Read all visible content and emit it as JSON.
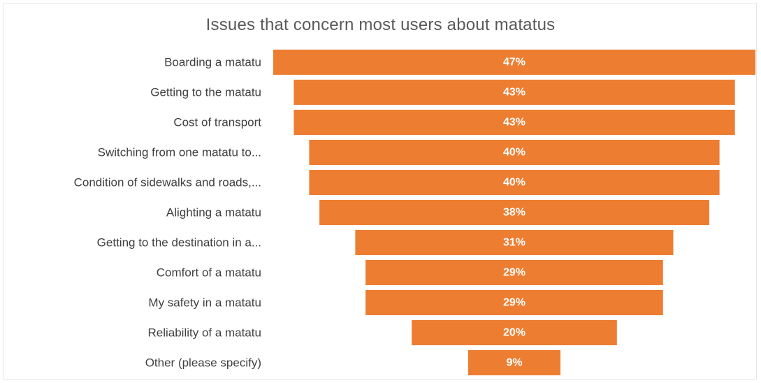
{
  "chart_data": {
    "type": "bar",
    "orientation": "horizontal",
    "layout": "funnel",
    "title": "Issues that concern most users about matatus",
    "categories": [
      "Boarding a matatu",
      "Getting to the matatu",
      "Cost of transport",
      "Switching from one matatu to...",
      "Condition of sidewalks and roads,...",
      "Alighting a matatu",
      "Getting to the destination in a...",
      "Comfort of a matatu",
      "My safety in a matatu",
      "Reliability of a matatu",
      "Other (please specify)"
    ],
    "values": [
      47,
      43,
      43,
      40,
      40,
      38,
      31,
      29,
      29,
      20,
      9
    ],
    "value_labels": [
      "47%",
      "43%",
      "43%",
      "40%",
      "40%",
      "38%",
      "31%",
      "29%",
      "29%",
      "20%",
      "9%"
    ],
    "unit": "%",
    "xlim": [
      0,
      47
    ],
    "grid": false,
    "legend": "none",
    "bar_color": "#ED7D31"
  }
}
